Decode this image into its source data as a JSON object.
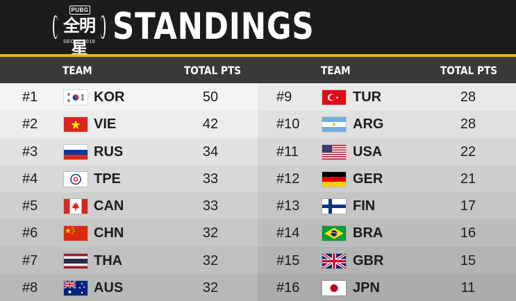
{
  "header": {
    "logo_badge": "PUBG",
    "logo_cn": "全明星",
    "logo_sub": "SEOUL 2019",
    "title": "STANDINGS"
  },
  "columns": {
    "team": "TEAM",
    "total_pts": "TOTAL PTS"
  },
  "colors": {
    "accent": "#f2b705",
    "header_bg": "#1c1c1c",
    "column_header_bg": "#3a3a3a"
  },
  "standings_left": [
    {
      "rank": "#1",
      "flag": "korea-flag-icon",
      "code": "KOR",
      "pts": "50"
    },
    {
      "rank": "#2",
      "flag": "vietnam-flag-icon",
      "code": "VIE",
      "pts": "42"
    },
    {
      "rank": "#3",
      "flag": "russia-flag-icon",
      "code": "RUS",
      "pts": "34"
    },
    {
      "rank": "#4",
      "flag": "chinese-taipei-flag-icon",
      "code": "TPE",
      "pts": "33"
    },
    {
      "rank": "#5",
      "flag": "canada-flag-icon",
      "code": "CAN",
      "pts": "33"
    },
    {
      "rank": "#6",
      "flag": "china-flag-icon",
      "code": "CHN",
      "pts": "32"
    },
    {
      "rank": "#7",
      "flag": "thailand-flag-icon",
      "code": "THA",
      "pts": "32"
    },
    {
      "rank": "#8",
      "flag": "australia-flag-icon",
      "code": "AUS",
      "pts": "32"
    }
  ],
  "standings_right": [
    {
      "rank": "#9",
      "flag": "turkey-flag-icon",
      "code": "TUR",
      "pts": "28"
    },
    {
      "rank": "#10",
      "flag": "argentina-flag-icon",
      "code": "ARG",
      "pts": "28"
    },
    {
      "rank": "#11",
      "flag": "usa-flag-icon",
      "code": "USA",
      "pts": "22"
    },
    {
      "rank": "#12",
      "flag": "germany-flag-icon",
      "code": "GER",
      "pts": "21"
    },
    {
      "rank": "#13",
      "flag": "finland-flag-icon",
      "code": "FIN",
      "pts": "17"
    },
    {
      "rank": "#14",
      "flag": "brazil-flag-icon",
      "code": "BRA",
      "pts": "16"
    },
    {
      "rank": "#15",
      "flag": "uk-flag-icon",
      "code": "GBR",
      "pts": "15"
    },
    {
      "rank": "#16",
      "flag": "japan-flag-icon",
      "code": "JPN",
      "pts": "11"
    }
  ]
}
